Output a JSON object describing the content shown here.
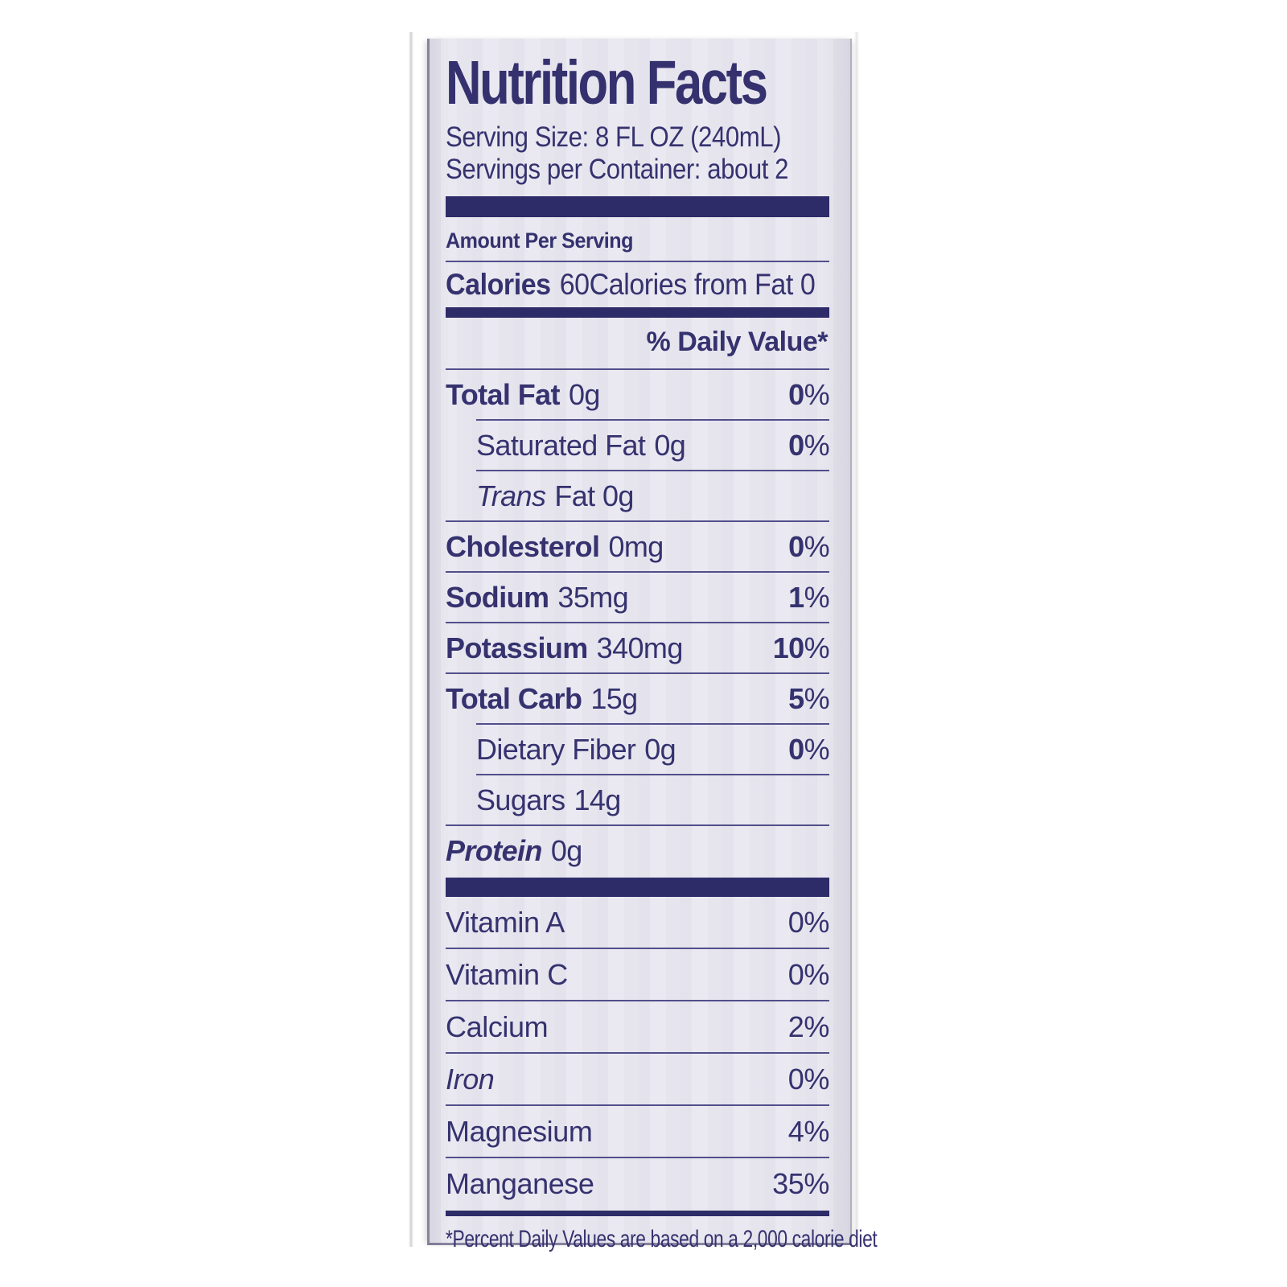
{
  "label": {
    "colors": {
      "ink": "#35326f",
      "bar": "#2d2b68",
      "background": "#e9e8f0"
    },
    "title": "Nutrition Facts",
    "serving_size": "Serving Size: 8 FL OZ (240mL)",
    "servings_per_container": "Servings per Container: about 2",
    "amount_per_serving": "Amount Per Serving",
    "calories": {
      "label": "Calories",
      "value": "60",
      "from_fat": "Calories from Fat 0"
    },
    "daily_value_header": "% Daily Value*",
    "nutrients": [
      {
        "name": "Total Fat",
        "amount": "0g",
        "dv": "0%",
        "bold": true,
        "indent": 0,
        "italic_name": false
      },
      {
        "name": "Saturated Fat",
        "amount": "0g",
        "dv": "0%",
        "bold": false,
        "indent": 1,
        "italic_name": false
      },
      {
        "name": "Trans",
        "amount": "Fat 0g",
        "dv": "",
        "bold": false,
        "indent": 1,
        "italic_name": true
      },
      {
        "name": "Cholesterol",
        "amount": "0mg",
        "dv": "0%",
        "bold": true,
        "indent": 0,
        "italic_name": false
      },
      {
        "name": "Sodium",
        "amount": "35mg",
        "dv": "1%",
        "bold": true,
        "indent": 0,
        "italic_name": false
      },
      {
        "name": "Potassium",
        "amount": "340mg",
        "dv": "10%",
        "bold": true,
        "indent": 0,
        "italic_name": false
      },
      {
        "name": "Total Carb",
        "amount": "15g",
        "dv": "5%",
        "bold": true,
        "indent": 0,
        "italic_name": false
      },
      {
        "name": "Dietary Fiber",
        "amount": "0g",
        "dv": "0%",
        "bold": false,
        "indent": 1,
        "italic_name": false
      },
      {
        "name": "Sugars",
        "amount": "14g",
        "dv": "",
        "bold": false,
        "indent": 1,
        "italic_name": false
      },
      {
        "name": "Protein",
        "amount": "0g",
        "dv": "",
        "bold": true,
        "indent": 0,
        "italic_name": true
      }
    ],
    "micronutrients": [
      {
        "name": "Vitamin A",
        "dv": "0%",
        "italic_name": false
      },
      {
        "name": "Vitamin C",
        "dv": "0%",
        "italic_name": false
      },
      {
        "name": "Calcium",
        "dv": "2%",
        "italic_name": false
      },
      {
        "name": "Iron",
        "dv": "0%",
        "italic_name": true
      },
      {
        "name": "Magnesium",
        "dv": "4%",
        "italic_name": false
      },
      {
        "name": "Manganese",
        "dv": "35%",
        "italic_name": false
      }
    ],
    "footnote": "*Percent Daily Values are based on a 2,000 calorie diet"
  }
}
